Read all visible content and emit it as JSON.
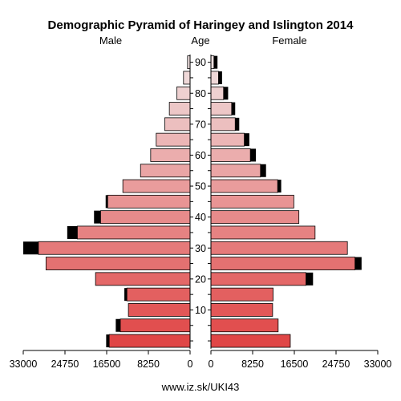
{
  "chart_data": {
    "type": "bar",
    "title": "Demographic Pyramid of Haringey and Islington 2014",
    "left_label": "Male",
    "center_label": "Age",
    "right_label": "Female",
    "source": "www.iz.sk/UKI43",
    "xlim": [
      0,
      33000
    ],
    "x_ticks": [
      "33000",
      "24750",
      "16500",
      "8250",
      "0"
    ],
    "x_ticks_right": [
      "0",
      "8250",
      "16500",
      "24750",
      "33000"
    ],
    "age_ticks": [
      "10",
      "20",
      "30",
      "40",
      "50",
      "60",
      "70",
      "80",
      "90"
    ],
    "age_groups": [
      "0-4",
      "5-9",
      "10-14",
      "15-19",
      "20-24",
      "25-29",
      "30-34",
      "35-39",
      "40-44",
      "45-49",
      "50-54",
      "55-59",
      "60-64",
      "65-69",
      "70-74",
      "75-79",
      "80-84",
      "85-89",
      "90+"
    ],
    "series": [
      {
        "name": "Male",
        "values": [
          16000,
          13800,
          12200,
          12500,
          18700,
          28500,
          30000,
          22300,
          17700,
          16300,
          13300,
          9800,
          7800,
          6700,
          5000,
          4100,
          2600,
          1300,
          500
        ],
        "overflow": [
          600,
          900,
          0,
          500,
          0,
          0,
          3000,
          2000,
          1300,
          400,
          0,
          0,
          0,
          0,
          0,
          0,
          0,
          0,
          0
        ]
      },
      {
        "name": "Female",
        "values": [
          15700,
          13300,
          12200,
          12300,
          18800,
          28500,
          27000,
          20600,
          17400,
          16400,
          13200,
          9800,
          7800,
          6600,
          4800,
          4100,
          2500,
          1500,
          600
        ],
        "overflow": [
          0,
          0,
          0,
          0,
          1400,
          1300,
          0,
          0,
          0,
          0,
          700,
          1100,
          1100,
          1000,
          800,
          700,
          900,
          700,
          700
        ]
      }
    ]
  }
}
